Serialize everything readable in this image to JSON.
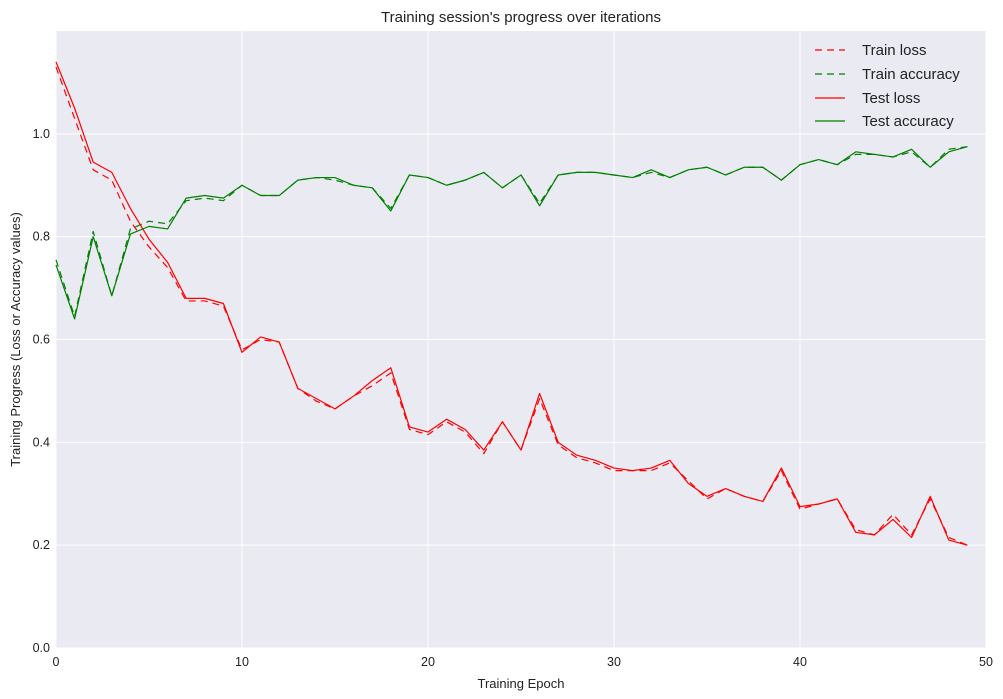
{
  "chart_data": {
    "type": "line",
    "title": "Training session's progress over iterations",
    "xlabel": "Training Epoch",
    "ylabel": "Training Progress (Loss or Accuracy values)",
    "xlim": [
      0,
      50
    ],
    "ylim": [
      0,
      1.2
    ],
    "xticks": [
      0,
      10,
      20,
      30,
      40,
      50
    ],
    "yticks": [
      0.0,
      0.2,
      0.4,
      0.6,
      0.8,
      1.0
    ],
    "xtick_labels": [
      "0",
      "10",
      "20",
      "30",
      "40",
      "50"
    ],
    "ytick_labels": [
      "0.0",
      "0.2",
      "0.4",
      "0.6",
      "0.8",
      "1.0"
    ],
    "grid": true,
    "legend": "top-right",
    "x": [
      0,
      1,
      2,
      3,
      4,
      5,
      6,
      7,
      8,
      9,
      10,
      11,
      12,
      13,
      14,
      15,
      16,
      17,
      18,
      19,
      20,
      21,
      22,
      23,
      24,
      25,
      26,
      27,
      28,
      29,
      30,
      31,
      32,
      33,
      34,
      35,
      36,
      37,
      38,
      39,
      40,
      41,
      42,
      43,
      44,
      45,
      46,
      47,
      48,
      49
    ],
    "series": [
      {
        "name": "Train loss",
        "color": "#ff0000",
        "style": "dashed",
        "values": [
          1.13,
          1.03,
          0.93,
          0.91,
          0.83,
          0.78,
          0.74,
          0.675,
          0.675,
          0.665,
          0.58,
          0.6,
          0.595,
          0.505,
          0.48,
          0.465,
          0.49,
          0.51,
          0.535,
          0.425,
          0.415,
          0.44,
          0.42,
          0.378,
          0.44,
          0.385,
          0.485,
          0.395,
          0.37,
          0.36,
          0.345,
          0.345,
          0.345,
          0.36,
          0.325,
          0.29,
          0.31,
          0.295,
          0.285,
          0.345,
          0.27,
          0.28,
          0.29,
          0.23,
          0.22,
          0.26,
          0.22,
          0.29,
          0.215,
          0.2
        ]
      },
      {
        "name": "Train accuracy",
        "color": "#008000",
        "style": "dashed",
        "values": [
          0.755,
          0.645,
          0.81,
          0.685,
          0.815,
          0.83,
          0.825,
          0.87,
          0.875,
          0.87,
          0.9,
          0.88,
          0.88,
          0.91,
          0.915,
          0.91,
          0.9,
          0.895,
          0.855,
          0.92,
          0.915,
          0.9,
          0.91,
          0.925,
          0.895,
          0.92,
          0.865,
          0.92,
          0.925,
          0.925,
          0.92,
          0.915,
          0.925,
          0.915,
          0.93,
          0.935,
          0.92,
          0.935,
          0.935,
          0.91,
          0.94,
          0.95,
          0.94,
          0.96,
          0.96,
          0.955,
          0.965,
          0.935,
          0.97,
          0.975
        ]
      },
      {
        "name": "Test loss",
        "color": "#ff0000",
        "style": "solid",
        "values": [
          1.14,
          1.05,
          0.945,
          0.925,
          0.855,
          0.795,
          0.75,
          0.68,
          0.68,
          0.67,
          0.575,
          0.605,
          0.595,
          0.505,
          0.485,
          0.465,
          0.49,
          0.52,
          0.545,
          0.43,
          0.42,
          0.445,
          0.425,
          0.385,
          0.44,
          0.385,
          0.495,
          0.4,
          0.375,
          0.365,
          0.35,
          0.345,
          0.35,
          0.365,
          0.32,
          0.295,
          0.31,
          0.295,
          0.285,
          0.35,
          0.275,
          0.28,
          0.29,
          0.225,
          0.22,
          0.25,
          0.215,
          0.295,
          0.21,
          0.2
        ]
      },
      {
        "name": "Test accuracy",
        "color": "#008000",
        "style": "solid",
        "values": [
          0.745,
          0.64,
          0.8,
          0.685,
          0.805,
          0.82,
          0.815,
          0.875,
          0.88,
          0.875,
          0.9,
          0.88,
          0.88,
          0.91,
          0.915,
          0.915,
          0.9,
          0.895,
          0.85,
          0.92,
          0.915,
          0.9,
          0.91,
          0.925,
          0.895,
          0.92,
          0.86,
          0.92,
          0.925,
          0.925,
          0.92,
          0.915,
          0.93,
          0.915,
          0.93,
          0.935,
          0.92,
          0.935,
          0.935,
          0.91,
          0.94,
          0.95,
          0.94,
          0.965,
          0.96,
          0.955,
          0.97,
          0.935,
          0.965,
          0.975
        ]
      }
    ],
    "colors": {
      "plot_background": "#eaeaf2",
      "grid": "#ffffff",
      "text": "#222222"
    }
  }
}
